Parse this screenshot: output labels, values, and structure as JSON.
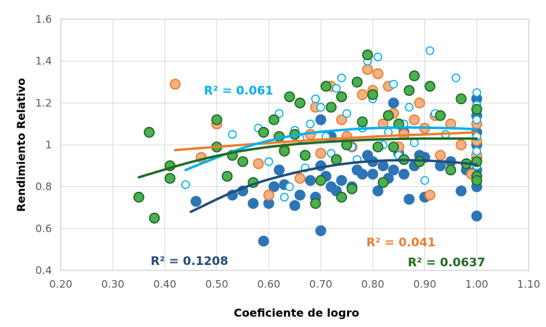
{
  "chart_data": {
    "type": "scatter",
    "title": "",
    "xlabel": "Coeficiente de logro",
    "ylabel": "Rendimiento Relativo",
    "xlim": [
      0.2,
      1.1
    ],
    "ylim": [
      0.4,
      1.6
    ],
    "x_ticks": [
      "0.20",
      "0.30",
      "0.40",
      "0.50",
      "0.60",
      "0.70",
      "0.80",
      "0.90",
      "1.00",
      "1.10"
    ],
    "y_ticks": [
      "0.4",
      "0.6",
      "0.8",
      "1",
      "1.2",
      "1.4",
      "1.6"
    ],
    "grid": "vertical and horizontal",
    "series": [
      {
        "color": "#2e75b6",
        "fill": "#2e75b6",
        "r2_label": "R² = 0.1208",
        "trend": [
          [
            0.45,
            0.68
          ],
          [
            0.55,
            0.8
          ],
          [
            0.65,
            0.87
          ],
          [
            0.75,
            0.915
          ],
          [
            0.85,
            0.93
          ],
          [
            0.95,
            0.92
          ],
          [
            1.0,
            0.905
          ]
        ],
        "points": [
          [
            0.46,
            0.73
          ],
          [
            0.53,
            0.76
          ],
          [
            0.55,
            0.78
          ],
          [
            0.57,
            0.72
          ],
          [
            0.59,
            0.54
          ],
          [
            0.6,
            0.72
          ],
          [
            0.61,
            0.8
          ],
          [
            0.62,
            0.88
          ],
          [
            0.63,
            0.81
          ],
          [
            0.65,
            0.71
          ],
          [
            0.66,
            0.76
          ],
          [
            0.68,
            0.83
          ],
          [
            0.69,
            0.75
          ],
          [
            0.7,
            0.59
          ],
          [
            0.7,
            0.9
          ],
          [
            0.71,
            0.85
          ],
          [
            0.72,
            0.8
          ],
          [
            0.73,
            0.78
          ],
          [
            0.74,
            0.83
          ],
          [
            0.76,
            0.8
          ],
          [
            0.77,
            0.88
          ],
          [
            0.78,
            0.86
          ],
          [
            0.79,
            0.95
          ],
          [
            0.8,
            0.92
          ],
          [
            0.81,
            0.78
          ],
          [
            0.82,
            0.9
          ],
          [
            0.83,
            0.84
          ],
          [
            0.84,
            0.88
          ],
          [
            0.85,
            0.96
          ],
          [
            0.86,
            0.86
          ],
          [
            0.87,
            0.74
          ],
          [
            0.88,
            0.9
          ],
          [
            0.89,
            0.95
          ],
          [
            0.9,
            0.75
          ],
          [
            0.9,
            0.94
          ],
          [
            0.93,
            0.9
          ],
          [
            0.95,
            0.92
          ],
          [
            0.97,
            0.78
          ],
          [
            0.98,
            0.88
          ],
          [
            1.0,
            0.66
          ],
          [
            1.0,
            0.8
          ],
          [
            1.0,
            0.88
          ],
          [
            1.0,
            0.94
          ],
          [
            1.0,
            1.0
          ],
          [
            1.0,
            1.06
          ],
          [
            1.0,
            1.14
          ],
          [
            1.0,
            1.22
          ],
          [
            0.7,
            1.12
          ],
          [
            0.72,
            1.04
          ],
          [
            0.84,
            1.2
          ],
          [
            0.8,
            0.86
          ],
          [
            0.86,
            1.06
          ]
        ]
      },
      {
        "color": "#ed7d31",
        "fill": "#f4b183",
        "r2_label": "R² = 0.041",
        "trend": [
          [
            0.42,
            0.975
          ],
          [
            0.6,
            1.01
          ],
          [
            0.8,
            1.04
          ],
          [
            0.9,
            1.05
          ],
          [
            1.0,
            1.06
          ]
        ],
        "points": [
          [
            0.42,
            1.29
          ],
          [
            0.47,
            0.94
          ],
          [
            0.5,
            1.1
          ],
          [
            0.58,
            0.91
          ],
          [
            0.6,
            0.76
          ],
          [
            0.63,
            0.98
          ],
          [
            0.66,
            0.84
          ],
          [
            0.68,
            1.05
          ],
          [
            0.69,
            1.18
          ],
          [
            0.72,
            1.28
          ],
          [
            0.74,
            1.12
          ],
          [
            0.75,
            1.04
          ],
          [
            0.76,
            0.99
          ],
          [
            0.78,
            1.24
          ],
          [
            0.79,
            1.36
          ],
          [
            0.8,
            1.26
          ],
          [
            0.81,
            1.34
          ],
          [
            0.82,
            1.1
          ],
          [
            0.83,
            1.28
          ],
          [
            0.84,
            1.15
          ],
          [
            0.85,
            0.99
          ],
          [
            0.86,
            1.05
          ],
          [
            0.88,
            1.12
          ],
          [
            0.89,
            1.2
          ],
          [
            0.9,
            1.08
          ],
          [
            0.91,
            0.76
          ],
          [
            0.92,
            1.14
          ],
          [
            0.93,
            0.95
          ],
          [
            0.95,
            1.1
          ],
          [
            0.97,
            1.0
          ],
          [
            0.99,
            0.86
          ],
          [
            1.0,
            1.02
          ],
          [
            1.0,
            1.1
          ],
          [
            1.0,
            0.95
          ],
          [
            0.75,
            1.0
          ],
          [
            0.7,
            0.96
          ]
        ]
      },
      {
        "color": "#00b0f0",
        "fill": "#ffffff",
        "r2_label": "R² = 0.061",
        "trend": [
          [
            0.44,
            0.88
          ],
          [
            0.55,
            0.99
          ],
          [
            0.65,
            1.05
          ],
          [
            0.75,
            1.075
          ],
          [
            0.85,
            1.085
          ],
          [
            0.95,
            1.08
          ],
          [
            1.0,
            1.075
          ]
        ],
        "points": [
          [
            0.44,
            0.81
          ],
          [
            0.53,
            1.05
          ],
          [
            0.58,
            1.08
          ],
          [
            0.6,
            0.92
          ],
          [
            0.62,
            1.15
          ],
          [
            0.63,
            0.75
          ],
          [
            0.64,
            0.8
          ],
          [
            0.66,
            1.03
          ],
          [
            0.68,
            1.1
          ],
          [
            0.69,
            1.22
          ],
          [
            0.7,
            1.18
          ],
          [
            0.71,
            1.04
          ],
          [
            0.72,
            0.96
          ],
          [
            0.73,
            1.27
          ],
          [
            0.74,
            1.32
          ],
          [
            0.75,
            1.15
          ],
          [
            0.76,
            0.99
          ],
          [
            0.77,
            0.93
          ],
          [
            0.78,
            1.08
          ],
          [
            0.79,
            1.4
          ],
          [
            0.8,
            1.22
          ],
          [
            0.81,
            1.42
          ],
          [
            0.82,
            1.0
          ],
          [
            0.83,
            1.06
          ],
          [
            0.84,
            1.29
          ],
          [
            0.85,
            0.95
          ],
          [
            0.86,
            1.1
          ],
          [
            0.87,
            1.18
          ],
          [
            0.88,
            1.01
          ],
          [
            0.9,
            0.83
          ],
          [
            0.91,
            1.45
          ],
          [
            0.92,
            1.15
          ],
          [
            0.94,
            1.05
          ],
          [
            0.96,
            1.32
          ],
          [
            0.98,
            0.91
          ],
          [
            1.0,
            1.25
          ],
          [
            1.0,
            1.19
          ],
          [
            1.0,
            1.12
          ],
          [
            1.0,
            1.04
          ],
          [
            1.0,
            0.97
          ],
          [
            1.0,
            0.9
          ],
          [
            0.65,
            1.07
          ],
          [
            0.67,
            0.89
          ]
        ]
      },
      {
        "color": "#1e6b24",
        "fill": "#4caf50",
        "r2_label": "R² = 0.0637",
        "trend": [
          [
            0.35,
            0.845
          ],
          [
            0.45,
            0.92
          ],
          [
            0.55,
            0.975
          ],
          [
            0.65,
            1.005
          ],
          [
            0.75,
            1.02
          ],
          [
            0.85,
            1.03
          ],
          [
            0.95,
            1.03
          ],
          [
            1.0,
            1.03
          ]
        ],
        "points": [
          [
            0.35,
            0.75
          ],
          [
            0.37,
            1.06
          ],
          [
            0.38,
            0.65
          ],
          [
            0.41,
            0.9
          ],
          [
            0.41,
            0.84
          ],
          [
            0.5,
            0.99
          ],
          [
            0.5,
            1.12
          ],
          [
            0.52,
            0.85
          ],
          [
            0.53,
            0.95
          ],
          [
            0.55,
            0.92
          ],
          [
            0.57,
            0.82
          ],
          [
            0.59,
            1.06
          ],
          [
            0.61,
            1.12
          ],
          [
            0.63,
            0.97
          ],
          [
            0.64,
            1.23
          ],
          [
            0.65,
            1.05
          ],
          [
            0.66,
            1.2
          ],
          [
            0.67,
            0.95
          ],
          [
            0.69,
            0.72
          ],
          [
            0.7,
            0.83
          ],
          [
            0.71,
            1.28
          ],
          [
            0.72,
            1.18
          ],
          [
            0.73,
            0.93
          ],
          [
            0.74,
            1.23
          ],
          [
            0.75,
            1.0
          ],
          [
            0.76,
            0.79
          ],
          [
            0.77,
            1.3
          ],
          [
            0.78,
            1.11
          ],
          [
            0.79,
            1.43
          ],
          [
            0.8,
            1.24
          ],
          [
            0.81,
            0.99
          ],
          [
            0.82,
            0.82
          ],
          [
            0.83,
            1.14
          ],
          [
            0.84,
            0.99
          ],
          [
            0.85,
            1.1
          ],
          [
            0.86,
            0.93
          ],
          [
            0.87,
            1.26
          ],
          [
            0.88,
            1.33
          ],
          [
            0.89,
            0.92
          ],
          [
            0.91,
            1.28
          ],
          [
            0.93,
            1.14
          ],
          [
            0.95,
            0.88
          ],
          [
            0.97,
            1.22
          ],
          [
            0.98,
            0.91
          ],
          [
            1.0,
            0.85
          ],
          [
            1.0,
            0.83
          ],
          [
            1.0,
            0.92
          ],
          [
            1.0,
            1.17
          ],
          [
            0.74,
            0.75
          ],
          [
            0.62,
            1.04
          ]
        ]
      }
    ]
  }
}
